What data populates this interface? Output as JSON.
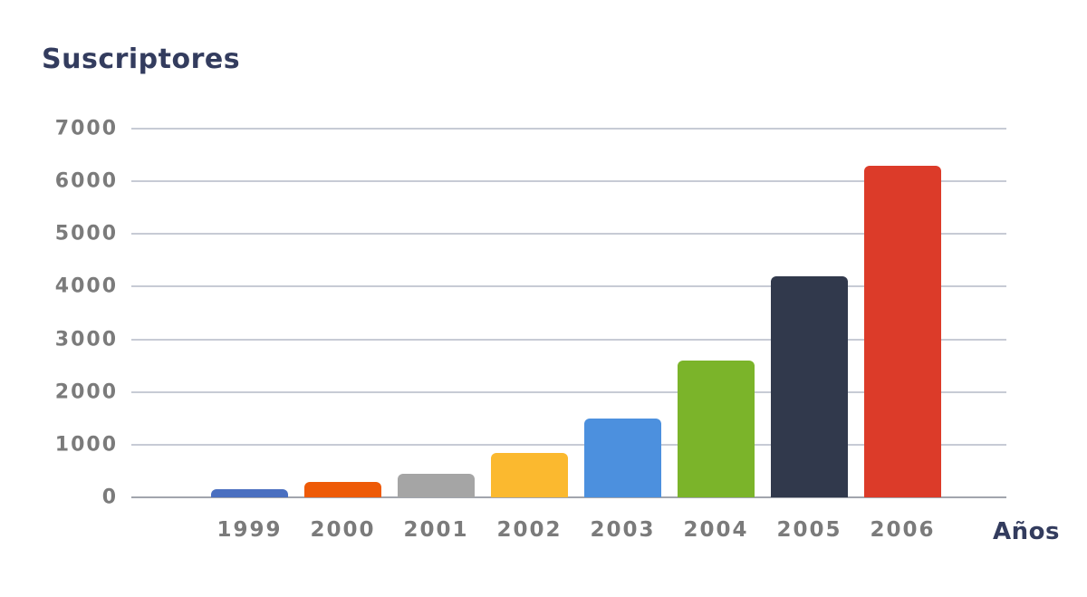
{
  "title": "Suscriptores",
  "chart_data": {
    "type": "bar",
    "title": "Suscriptores",
    "xlabel": "Años",
    "ylabel": "",
    "categories": [
      "1999",
      "2000",
      "2001",
      "2002",
      "2003",
      "2004",
      "2005",
      "2006"
    ],
    "values": [
      150,
      300,
      450,
      850,
      1500,
      2600,
      4200,
      6300
    ],
    "bar_colors": [
      "#4a6fc0",
      "#ee5a07",
      "#a5a5a5",
      "#fbb92f",
      "#4c90de",
      "#7bb42a",
      "#31394c",
      "#dc3b29"
    ],
    "ylim": [
      0,
      7000
    ],
    "yticks": [
      0,
      1000,
      2000,
      3000,
      4000,
      5000,
      6000,
      7000
    ],
    "grid": true,
    "legend": false
  },
  "style_colors": {
    "title_color": "#333c5e",
    "tick_label_color": "#7b7b7b",
    "grid_color": "#c7cbd5",
    "baseline_color": "#a2a5ad",
    "background": "#ffffff"
  }
}
